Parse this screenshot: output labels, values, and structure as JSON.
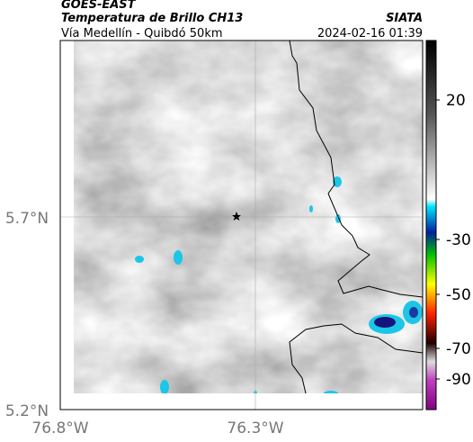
{
  "header": {
    "satellite": "GOES-EAST",
    "product": "Temperatura de Brillo CH13",
    "source": "SIATA",
    "route": "Vía Medellín - Quibdó 50km",
    "datetime": "2024-02-16 01:39"
  },
  "map": {
    "lon_ticks": [
      "76.8°W",
      "76.3°W"
    ],
    "lat_ticks": [
      "5.7°N",
      "5.2°N"
    ]
  },
  "colorbar": {
    "ticks": [
      20,
      -30,
      -50,
      -70,
      -90
    ]
  }
}
